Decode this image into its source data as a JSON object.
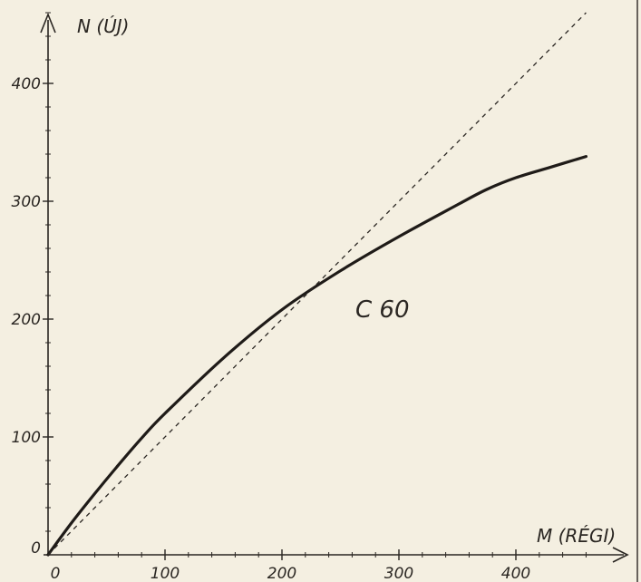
{
  "chart_data": {
    "type": "line",
    "xlabel": "M (RÉGI)",
    "ylabel": "N (ÚJ)",
    "annotation": "C 60",
    "xlim": [
      0,
      480
    ],
    "ylim": [
      0,
      460
    ],
    "x_ticks": [
      0,
      100,
      200,
      300,
      400
    ],
    "x_tick_labels": [
      "0",
      "100",
      "200",
      "300",
      "400"
    ],
    "y_ticks": [
      0,
      100,
      200,
      300,
      400
    ],
    "y_tick_labels": [
      "0",
      "100",
      "200",
      "300",
      "400"
    ],
    "grid": false,
    "series": [
      {
        "style": "solid",
        "x": [
          0,
          20,
          40,
          60,
          80,
          100,
          150,
          200,
          250,
          300,
          350,
          375,
          400,
          430,
          460
        ],
        "y": [
          0,
          27,
          52,
          76,
          99,
          120,
          167,
          208,
          241,
          270,
          297,
          310,
          320,
          329,
          338
        ]
      },
      {
        "style": "dashed",
        "x": [
          0,
          460
        ],
        "y": [
          0,
          460
        ]
      }
    ]
  }
}
